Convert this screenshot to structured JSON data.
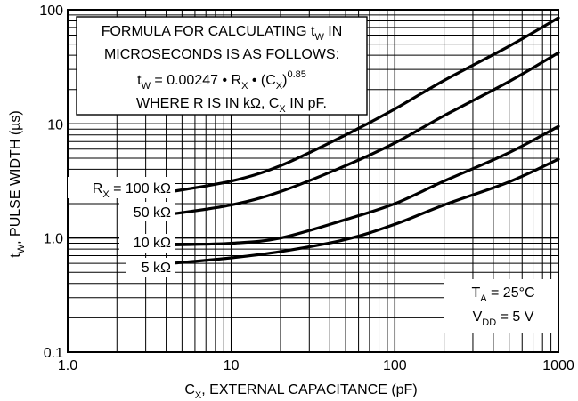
{
  "chart_data": {
    "type": "line",
    "x_scale": "log",
    "y_scale": "log",
    "xlim": [
      1,
      1000
    ],
    "ylim": [
      0.1,
      100
    ],
    "grid": true,
    "xlabel": {
      "prefix": "C",
      "sub": "X",
      "suffix": ", EXTERNAL CAPACITANCE (pF)"
    },
    "ylabel": {
      "prefix": "t",
      "sub": "W",
      "suffix": ", PULSE WIDTH (µs)"
    },
    "x_ticks": [
      {
        "value": 1,
        "label": "1.0"
      },
      {
        "value": 10,
        "label": "10"
      },
      {
        "value": 100,
        "label": "100"
      },
      {
        "value": 1000,
        "label": "1000"
      }
    ],
    "y_ticks": [
      {
        "value": 0.1,
        "label": "0.1"
      },
      {
        "value": 1,
        "label": "1.0"
      },
      {
        "value": 10,
        "label": "10"
      },
      {
        "value": 100,
        "label": "100"
      }
    ],
    "series": [
      {
        "name": "100 kΩ",
        "x": [
          4.3,
          10,
          20,
          50,
          100,
          200,
          500,
          1000
        ],
        "y": [
          2.55,
          3.15,
          4.3,
          8.0,
          13.5,
          24,
          48,
          85
        ]
      },
      {
        "name": "50 kΩ",
        "x": [
          4.3,
          10,
          20,
          50,
          100,
          200,
          500,
          1000
        ],
        "y": [
          1.62,
          1.95,
          2.55,
          4.3,
          6.8,
          11.8,
          23.5,
          42
        ]
      },
      {
        "name": "10 kΩ",
        "x": [
          4.3,
          10,
          20,
          50,
          100,
          200,
          500,
          1000
        ],
        "y": [
          0.87,
          0.9,
          1.0,
          1.45,
          2.0,
          3.15,
          5.6,
          9.5
        ]
      },
      {
        "name": "5 kΩ",
        "x": [
          4.3,
          10,
          20,
          50,
          100,
          200,
          500,
          1000
        ],
        "y": [
          0.6,
          0.67,
          0.76,
          0.97,
          1.32,
          1.95,
          3.1,
          4.9
        ]
      }
    ],
    "series_label_prefix": {
      "text": "R",
      "sub": "X",
      "suffix": " = "
    },
    "formula_box": {
      "line1": {
        "text": "FORMULA FOR CALCULATING t",
        "sub": "W",
        "suffix": " IN"
      },
      "line2": "MICROSECONDS IS AS FOLLOWS:",
      "line3": {
        "t": "t",
        "t_sub": "W",
        "mid": " = 0.00247 • R",
        "r_sub": "X",
        "mid2": " • (C",
        "c_sub": "X",
        "close": ")",
        "exp": "0.85"
      },
      "line4": {
        "text": "WHERE R IS IN kΩ, C",
        "sub": "X",
        "suffix": " IN pF."
      }
    },
    "conditions_box": {
      "line1": {
        "text": "T",
        "sub": "A",
        "suffix": " = 25°C"
      },
      "line2": {
        "text": "V",
        "sub": "DD",
        "suffix": " = 5 V"
      }
    }
  }
}
